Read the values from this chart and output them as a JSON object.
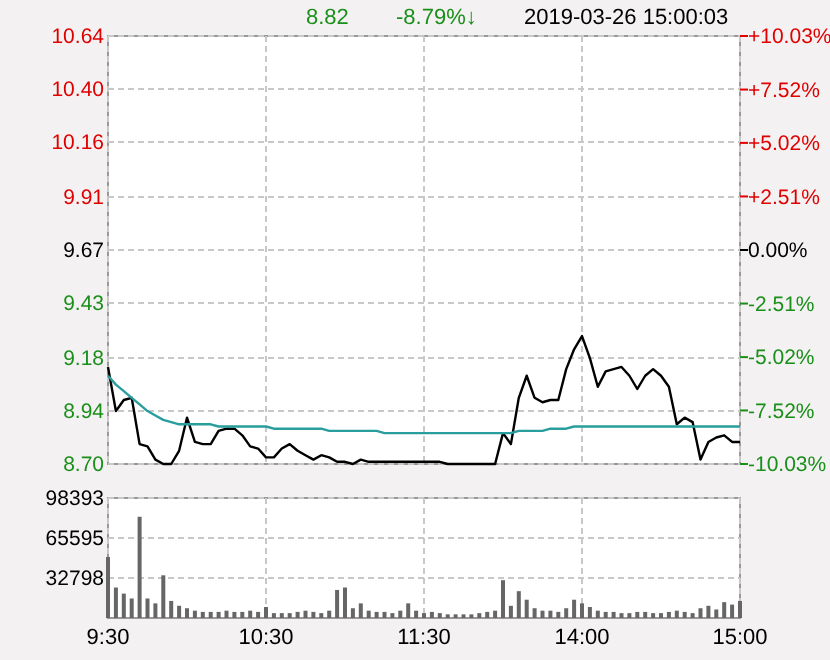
{
  "chart_data": [
    {
      "type": "line",
      "annotations": [
        "8.82",
        "-8.79%↓",
        "2019-03-26 15:00:03"
      ],
      "categories": [
        null,
        null,
        null,
        null,
        null,
        null,
        null,
        null,
        null,
        null,
        null,
        null,
        null,
        null,
        null,
        null,
        null,
        null,
        null,
        null,
        null,
        null,
        null,
        null,
        null,
        null,
        null,
        null,
        null,
        null,
        null,
        null,
        null,
        null,
        null,
        null,
        null,
        null,
        null,
        null,
        null,
        null,
        null,
        null,
        null,
        null,
        null,
        null,
        null,
        null,
        null,
        null,
        null,
        null,
        null,
        null,
        null,
        null,
        null,
        null,
        null,
        null,
        null,
        null,
        null,
        null,
        null,
        null,
        null,
        null,
        null,
        null,
        null,
        null,
        null,
        null,
        null,
        null,
        null,
        null,
        null
      ],
      "ylim": [
        8.7,
        10.64
      ],
      "yticks": [
        {
          "value": 8.7,
          "label": "8.70"
        },
        8.94,
        9.18,
        9.43,
        9.67,
        9.91,
        10.16,
        {
          "value": 10.4,
          "label": "10.40"
        },
        10.64
      ],
      "y2lim": [
        -10.03,
        10.03
      ],
      "y2ticks": [
        {
          "value": -10.03,
          "label": "-10.03%"
        },
        {
          "value": -7.52,
          "label": "-7.52%"
        },
        {
          "value": -5.02,
          "label": "-5.02%"
        },
        {
          "value": -2.51,
          "label": "-2.51%"
        },
        {
          "value": 0,
          "label": "0.00%"
        },
        {
          "value": 2.51,
          "label": "+2.51%"
        },
        {
          "value": 5.02,
          "label": "+5.02%"
        },
        {
          "value": 7.52,
          "label": "+7.52%"
        },
        {
          "value": 10.03,
          "label": "+10.03%"
        }
      ],
      "grid": true,
      "tick_labels": "y",
      "series": [
        {
          "color": "#000000",
          "values": [
            9.14,
            8.94,
            8.99,
            9.0,
            8.79,
            8.78,
            8.72,
            8.7,
            8.7,
            8.76,
            8.91,
            8.8,
            8.79,
            8.79,
            8.85,
            8.86,
            8.86,
            8.83,
            8.78,
            8.77,
            8.73,
            8.73,
            8.77,
            8.79,
            8.76,
            8.74,
            8.72,
            8.74,
            8.73,
            8.71,
            8.71,
            8.7,
            8.72,
            8.71,
            8.71,
            8.71,
            8.71,
            8.71,
            8.71,
            8.71,
            8.71,
            8.71,
            8.71,
            8.7,
            8.7,
            8.7,
            8.7,
            8.7,
            8.7,
            8.7,
            8.84,
            8.79,
            9.0,
            9.1,
            9.0,
            8.98,
            8.99,
            8.99,
            9.13,
            9.22,
            9.28,
            9.18,
            9.05,
            9.12,
            9.13,
            9.14,
            9.1,
            9.04,
            9.1,
            9.13,
            9.1,
            9.05,
            8.88,
            8.91,
            8.89,
            8.72,
            8.8,
            8.82,
            8.83,
            8.8,
            8.8
          ]
        },
        {
          "color": "#2a9d9d",
          "values": [
            9.1,
            9.06,
            9.03,
            9.0,
            8.97,
            8.94,
            8.92,
            8.9,
            8.89,
            8.88,
            8.88,
            8.88,
            8.88,
            8.88,
            8.87,
            8.87,
            8.87,
            8.87,
            8.87,
            8.87,
            8.87,
            8.86,
            8.86,
            8.86,
            8.86,
            8.86,
            8.86,
            8.86,
            8.85,
            8.85,
            8.85,
            8.85,
            8.85,
            8.85,
            8.85,
            8.84,
            8.84,
            8.84,
            8.84,
            8.84,
            8.84,
            8.84,
            8.84,
            8.84,
            8.84,
            8.84,
            8.84,
            8.84,
            8.84,
            8.84,
            8.84,
            8.84,
            8.85,
            8.85,
            8.85,
            8.85,
            8.86,
            8.86,
            8.86,
            8.87,
            8.87,
            8.87,
            8.87,
            8.87,
            8.87,
            8.87,
            8.87,
            8.87,
            8.87,
            8.87,
            8.87,
            8.87,
            8.87,
            8.87,
            8.87,
            8.87,
            8.87,
            8.87,
            8.87,
            8.87,
            8.87
          ]
        }
      ]
    },
    {
      "type": "bar",
      "categories": [
        "9:30",
        null,
        null,
        null,
        null,
        null,
        null,
        null,
        null,
        null,
        null,
        null,
        null,
        null,
        null,
        null,
        null,
        null,
        null,
        null,
        "10:30",
        null,
        null,
        null,
        null,
        null,
        null,
        null,
        null,
        null,
        null,
        null,
        null,
        null,
        null,
        null,
        null,
        null,
        null,
        null,
        "11:30",
        null,
        null,
        null,
        null,
        null,
        null,
        null,
        null,
        null,
        null,
        null,
        null,
        null,
        null,
        null,
        null,
        null,
        null,
        null,
        "14:00",
        null,
        null,
        null,
        null,
        null,
        null,
        null,
        null,
        null,
        null,
        null,
        null,
        null,
        null,
        null,
        null,
        null,
        null,
        null,
        "15:00"
      ],
      "ylim": [
        0,
        98393
      ],
      "yticks": [
        32798,
        65595,
        98393
      ],
      "grid": true,
      "values": [
        50000,
        25000,
        20000,
        16000,
        83000,
        16000,
        12000,
        35000,
        14000,
        10000,
        8000,
        6000,
        5000,
        5000,
        5000,
        6000,
        5000,
        5000,
        6000,
        5000,
        9000,
        4000,
        4000,
        4000,
        5000,
        6000,
        5000,
        4000,
        6000,
        23000,
        25000,
        8000,
        12000,
        6000,
        5000,
        5000,
        4000,
        6000,
        12000,
        6000,
        4000,
        5000,
        4000,
        3000,
        3000,
        3000,
        3000,
        4000,
        5000,
        6000,
        31000,
        10000,
        22000,
        15000,
        8000,
        6000,
        6000,
        5000,
        8000,
        15000,
        12000,
        9000,
        6000,
        5000,
        5000,
        4000,
        4000,
        5000,
        5000,
        4000,
        4000,
        5000,
        6000,
        5000,
        4000,
        8000,
        10000,
        7000,
        13000,
        11000,
        14000
      ],
      "color": "#666666"
    }
  ]
}
